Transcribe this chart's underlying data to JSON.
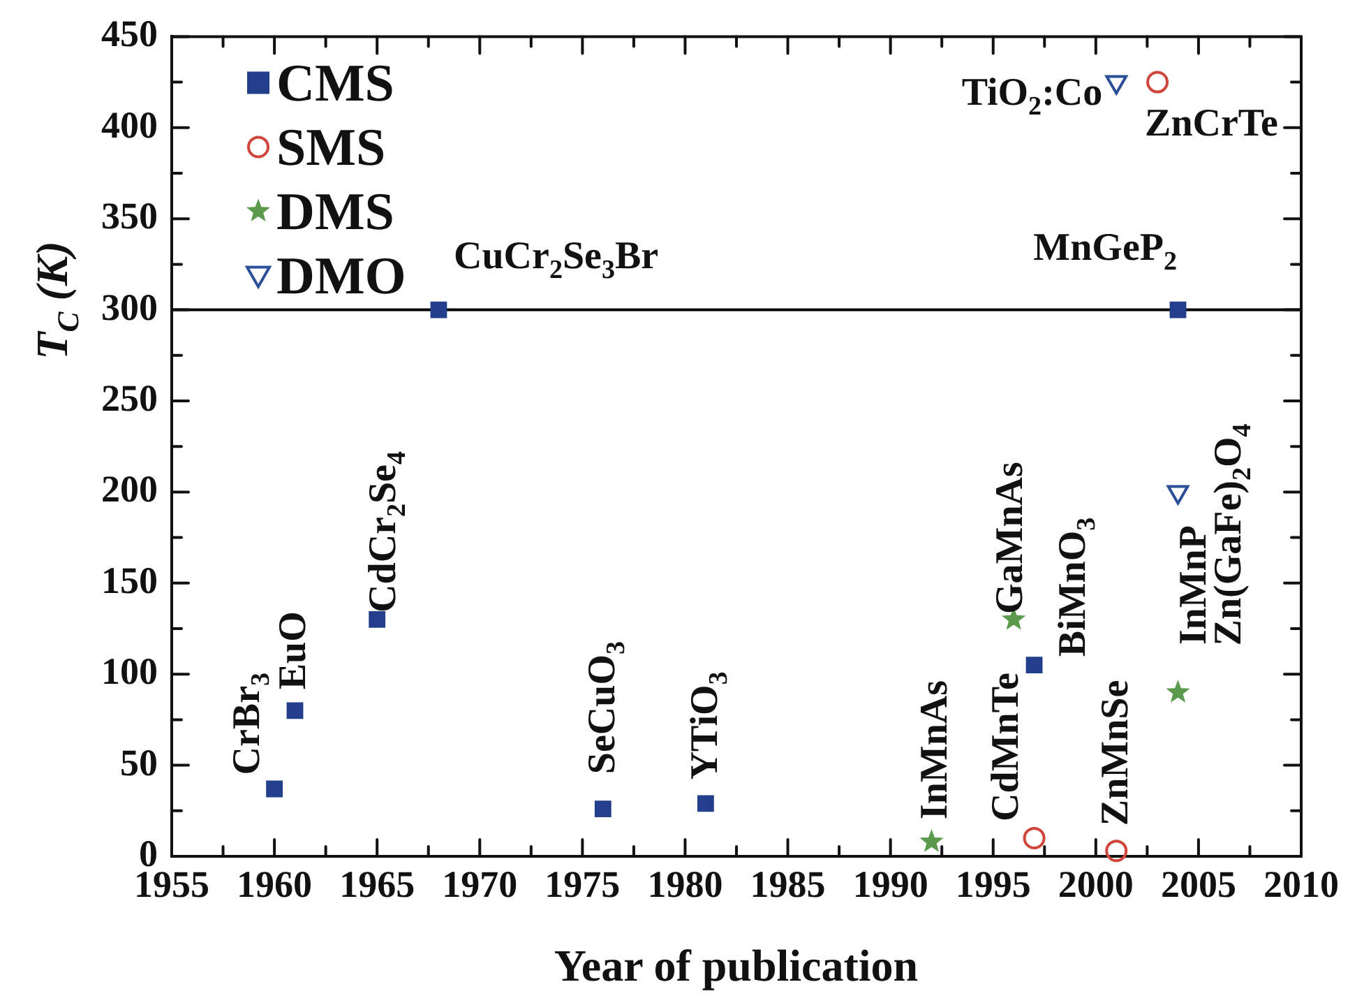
{
  "chart_data": {
    "type": "scatter",
    "xlabel": "Year of publication",
    "ylabel": "T$_{C}$ (K)",
    "xlim": [
      1955,
      2010
    ],
    "xticks": [
      1955,
      1960,
      1965,
      1970,
      1975,
      1980,
      1985,
      1990,
      1995,
      2000,
      2005,
      2010
    ],
    "ylim": [
      0,
      450
    ],
    "yticks": [
      0,
      50,
      100,
      150,
      200,
      250,
      300,
      350,
      400,
      450
    ],
    "grid": false,
    "legend": "top left",
    "series": [
      {
        "name": "CMS",
        "color": "#233f8c",
        "marker": "square",
        "x": [
          1960,
          1961,
          1965,
          1968,
          1976,
          1981,
          1997,
          2004
        ],
        "values": [
          37,
          80,
          130,
          300,
          26,
          29,
          105,
          300
        ]
      },
      {
        "name": "SMS",
        "color": "#d0463c",
        "marker": "circle",
        "x": [
          1997,
          2001,
          2003
        ],
        "values": [
          10,
          3,
          425
        ]
      },
      {
        "name": "DMS",
        "color": "#5b9a4c",
        "marker": "star",
        "x": [
          1992,
          1996,
          2004
        ],
        "values": [
          8,
          130,
          90
        ]
      },
      {
        "name": "DMO",
        "color": "#2c4f99",
        "marker": "triangle",
        "x": [
          2001,
          2004
        ],
        "values": [
          425,
          200
        ]
      }
    ],
    "ref_lines": [
      {
        "axis": "y",
        "value": 300,
        "color": "#000000"
      }
    ],
    "annotations": [
      {
        "text": "CrBr$_{3}$",
        "x": 1960,
        "y": 37
      },
      {
        "text": "EuO",
        "x": 1961,
        "y": 80
      },
      {
        "text": "CdCr$_{2}$Se$_{4}$",
        "x": 1965,
        "y": 130
      },
      "CuCr$_{2}$Se$_{3}$Br",
      {
        "text": "SeCuO$_{3}$",
        "x": 1976,
        "y": 26
      },
      {
        "text": "YTiO$_{3}$",
        "x": 1981,
        "y": 29
      },
      {
        "text": "InMnAs",
        "x": 1992,
        "y": 8
      },
      {
        "text": "CdMnTe",
        "x": 1997,
        "y": 10
      },
      {
        "text": "GaMnAs",
        "x": 1996,
        "y": 130
      },
      {
        "text": "BiMnO$_{3}$",
        "x": 1997,
        "y": 105
      },
      {
        "text": "ZnMnSe",
        "x": 2001,
        "y": 3
      },
      {
        "text": "InMnP",
        "x": 2004,
        "y": 90
      },
      {
        "text": "Zn(GaFe)$_{2}$O$_{4}$",
        "x": 2004,
        "y": 200
      },
      "MnGeP$_{2}$",
      {
        "text": "TiO$_{2}$:Co",
        "x": 2001,
        "y": 425
      },
      {
        "text": "ZnCrTe",
        "x": 2003,
        "y": 425
      }
    ]
  }
}
